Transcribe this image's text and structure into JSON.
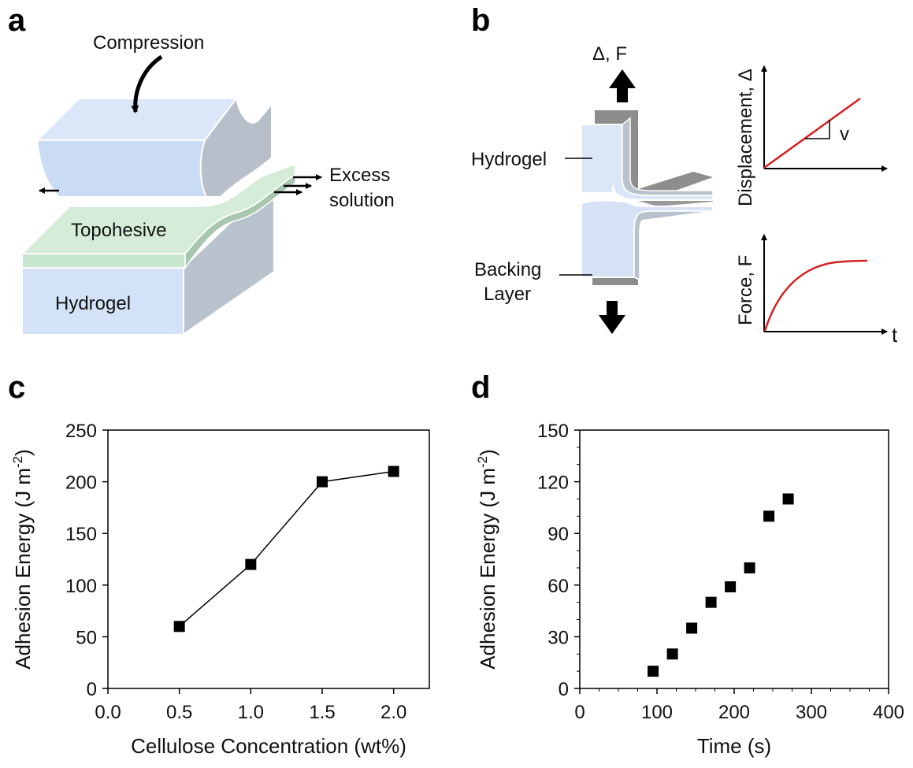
{
  "panels": {
    "a": {
      "letter": "a",
      "compression": "Compression",
      "excess_line1": "Excess",
      "excess_line2": "solution",
      "topohesive": "Topohesive",
      "hydrogel": "Hydrogel"
    },
    "b": {
      "letter": "b",
      "delta_f": "Δ, F",
      "hydrogel": "Hydrogel",
      "backing_line1": "Backing",
      "backing_line2": "Layer",
      "disp_ylabel": "Displacement, Δ",
      "v_label": "v",
      "force_ylabel": "Force, F",
      "t_label": "t"
    },
    "c": {
      "letter": "c"
    },
    "d": {
      "letter": "d"
    }
  },
  "colors": {
    "hydrogel_blue": "#d6e4f7",
    "topohesive_green": "#d5ecd9",
    "gray": "#b8bec6",
    "curve_red": "#d42020"
  },
  "chart_data": [
    {
      "type": "line",
      "panel": "c",
      "xlabel": "Cellulose Concentration (wt%)",
      "ylabel": "Adhesion Energy (J m",
      "ylabel_sup": "-2",
      "ylabel_close": ")",
      "xlim": [
        0.0,
        2.25
      ],
      "ylim": [
        0,
        250
      ],
      "xticks": [
        "0.0",
        "0.5",
        "1.0",
        "1.5",
        "2.0"
      ],
      "xtick_values": [
        0.0,
        0.5,
        1.0,
        1.5,
        2.0
      ],
      "yticks": [
        "0",
        "50",
        "100",
        "150",
        "200",
        "250"
      ],
      "ytick_values": [
        0,
        50,
        100,
        150,
        200,
        250
      ],
      "x": [
        0.5,
        1.0,
        1.5,
        2.0
      ],
      "y": [
        60,
        120,
        200,
        210
      ],
      "marker": "square",
      "grid": false
    },
    {
      "type": "scatter",
      "panel": "d",
      "xlabel": "Time (s)",
      "ylabel": "Adhesion Energy (J m",
      "ylabel_sup": "-2",
      "ylabel_close": ")",
      "xlim": [
        0,
        400
      ],
      "ylim": [
        0,
        150
      ],
      "xticks": [
        "0",
        "100",
        "200",
        "300",
        "400"
      ],
      "xtick_values": [
        0,
        100,
        200,
        300,
        400
      ],
      "yticks": [
        "0",
        "30",
        "60",
        "90",
        "120",
        "150"
      ],
      "ytick_values": [
        0,
        30,
        60,
        90,
        120,
        150
      ],
      "x": [
        95,
        120,
        145,
        170,
        195,
        220,
        245,
        270
      ],
      "y": [
        10,
        20,
        35,
        50,
        59,
        70,
        100,
        110
      ],
      "marker": "square",
      "grid": false
    }
  ]
}
